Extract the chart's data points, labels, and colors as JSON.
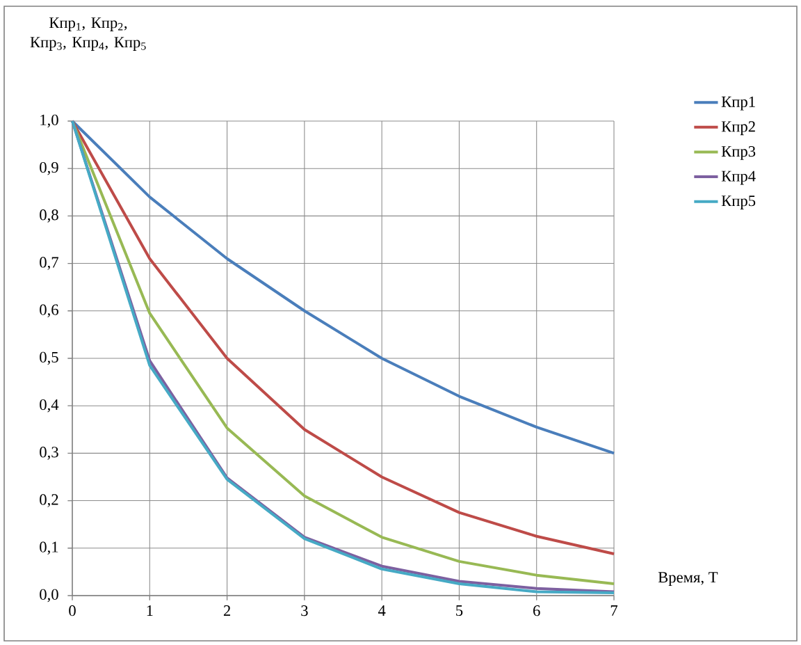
{
  "chart_data": {
    "type": "line",
    "ylabel": "Кпр$_{1}$, Кпр$_{2}$, Кпр$_{3}$, Кпр$_{4}$, Кпр$_{5}$",
    "xlabel": "Время, T",
    "x": [
      0,
      1,
      2,
      3,
      4,
      5,
      6,
      7
    ],
    "xlim": [
      0,
      7
    ],
    "xticks": [
      0,
      1,
      2,
      3,
      4,
      5,
      6,
      7
    ],
    "ylim": [
      0,
      1
    ],
    "yticks": [
      {
        "value": 0,
        "label": "0,0"
      },
      {
        "value": 0.1,
        "label": "0,1"
      },
      {
        "value": 0.2,
        "label": "0,2"
      },
      {
        "value": 0.3,
        "label": "0,3"
      },
      {
        "value": 0.4,
        "label": "0,4"
      },
      {
        "value": 0.5,
        "label": "0,5"
      },
      {
        "value": 0.6,
        "label": "0,6"
      },
      {
        "value": 0.7,
        "label": "0,7"
      },
      {
        "value": 0.8,
        "label": "0,8"
      },
      {
        "value": 0.9,
        "label": "0,9"
      },
      {
        "value": 1,
        "label": "1,0"
      }
    ],
    "grid": true,
    "legend": "right",
    "marker": "none",
    "line_style": "solid",
    "series": [
      {
        "name": "Кпр1",
        "color": "#4a7ebb",
        "values": [
          1,
          0.84,
          0.71,
          0.6,
          0.5,
          0.42,
          0.355,
          0.3
        ]
      },
      {
        "name": "Кпр2",
        "color": "#be4b48",
        "values": [
          1,
          0.71,
          0.5,
          0.35,
          0.25,
          0.175,
          0.125,
          0.088
        ]
      },
      {
        "name": "Кпр3",
        "color": "#98b954",
        "values": [
          1,
          0.595,
          0.353,
          0.21,
          0.123,
          0.072,
          0.043,
          0.025
        ]
      },
      {
        "name": "Кпр4",
        "color": "#7d60a0",
        "values": [
          1,
          0.495,
          0.248,
          0.123,
          0.062,
          0.03,
          0.015,
          0.008
        ]
      },
      {
        "name": "Кпр5",
        "color": "#46aac5",
        "values": [
          1,
          0.485,
          0.245,
          0.12,
          0.056,
          0.025,
          0.008,
          0.006
        ]
      }
    ]
  }
}
